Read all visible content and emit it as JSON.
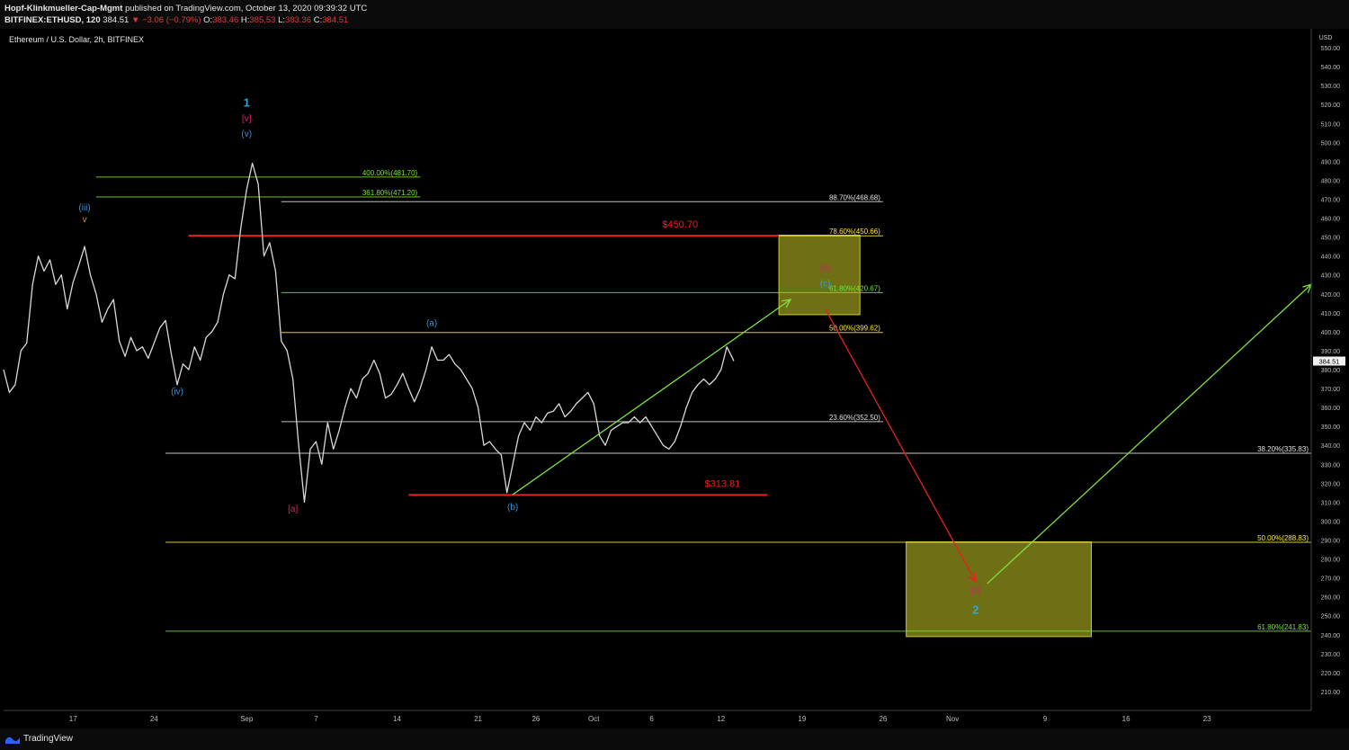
{
  "header": {
    "publisher": "Hopf-Klinkmueller-Cap-Mgmt",
    "published": "published on TradingView.com, October 13, 2020 09:39:32 UTC",
    "symbol": "BITFINEX:ETHUSD, 120",
    "last": "384.51",
    "change": "▼ −3.06 (−0.79%)",
    "o_label": "O:",
    "o": "383.46",
    "h_label": "H:",
    "h": "385.53",
    "l_label": "L:",
    "l": "383.36",
    "c_label": "C:",
    "c": "384.51"
  },
  "footer": {
    "brand": "TradingView",
    "icon": "tradingview-logo-icon"
  },
  "colors": {
    "background": "#000000",
    "price": "#d8d8d8",
    "red": "#e8211c",
    "green": "#7ee23b",
    "yellow": "#ffeb3b",
    "blue": "#3a8fd6",
    "cyan": "#26a9d6",
    "magenta": "#d8206f",
    "orange": "#f08a24",
    "zone": "#9a9a1f"
  },
  "chart_data": {
    "type": "line",
    "title": "Ethereum / U.S. Dollar, 2h, BITFINEX",
    "currency": "USD",
    "ylim": [
      200,
      560
    ],
    "yticks": [
      210,
      220,
      230,
      240,
      250,
      260,
      270,
      280,
      290,
      300,
      310,
      320,
      330,
      340,
      350,
      360,
      370,
      380,
      390,
      400,
      410,
      420,
      430,
      440,
      450,
      460,
      470,
      480,
      490,
      500,
      510,
      520,
      530,
      540,
      550
    ],
    "xlim": [
      "2020-08-11",
      "2020-12-02"
    ],
    "xticks": [
      {
        "x": "2020-08-17",
        "label": "17"
      },
      {
        "x": "2020-08-24",
        "label": "24"
      },
      {
        "x": "2020-09-01",
        "label": "Sep"
      },
      {
        "x": "2020-09-07",
        "label": "7"
      },
      {
        "x": "2020-09-14",
        "label": "14"
      },
      {
        "x": "2020-09-21",
        "label": "21"
      },
      {
        "x": "2020-09-26",
        "label": "26"
      },
      {
        "x": "2020-10-01",
        "label": "Oct"
      },
      {
        "x": "2020-10-06",
        "label": "6"
      },
      {
        "x": "2020-10-12",
        "label": "12"
      },
      {
        "x": "2020-10-19",
        "label": "19"
      },
      {
        "x": "2020-10-26",
        "label": "26"
      },
      {
        "x": "2020-11-01",
        "label": "Nov"
      },
      {
        "x": "2020-11-09",
        "label": "9"
      },
      {
        "x": "2020-11-16",
        "label": "16"
      },
      {
        "x": "2020-11-23",
        "label": "23"
      }
    ],
    "current_price": 384.51,
    "price_series": [
      [
        "2020-08-11",
        380
      ],
      [
        "2020-08-11.5",
        368
      ],
      [
        "2020-08-12",
        372
      ],
      [
        "2020-08-12.5",
        390
      ],
      [
        "2020-08-13",
        394
      ],
      [
        "2020-08-13.5",
        425
      ],
      [
        "2020-08-14",
        440
      ],
      [
        "2020-08-14.5",
        432
      ],
      [
        "2020-08-15",
        438
      ],
      [
        "2020-08-15.5",
        425
      ],
      [
        "2020-08-16",
        430
      ],
      [
        "2020-08-16.5",
        412
      ],
      [
        "2020-08-17",
        426
      ],
      [
        "2020-08-17.5",
        435
      ],
      [
        "2020-08-18",
        445
      ],
      [
        "2020-08-18.5",
        430
      ],
      [
        "2020-08-19",
        420
      ],
      [
        "2020-08-19.5",
        405
      ],
      [
        "2020-08-20",
        412
      ],
      [
        "2020-08-20.5",
        417
      ],
      [
        "2020-08-21",
        395
      ],
      [
        "2020-08-21.5",
        387
      ],
      [
        "2020-08-22",
        397
      ],
      [
        "2020-08-22.5",
        390
      ],
      [
        "2020-08-23",
        392
      ],
      [
        "2020-08-23.5",
        386
      ],
      [
        "2020-08-24",
        394
      ],
      [
        "2020-08-24.5",
        402
      ],
      [
        "2020-08-25",
        406
      ],
      [
        "2020-08-25.5",
        388
      ],
      [
        "2020-08-26",
        372
      ],
      [
        "2020-08-26.5",
        383
      ],
      [
        "2020-08-27",
        380
      ],
      [
        "2020-08-27.5",
        392
      ],
      [
        "2020-08-28",
        385
      ],
      [
        "2020-08-28.5",
        397
      ],
      [
        "2020-08-29",
        400
      ],
      [
        "2020-08-29.5",
        405
      ],
      [
        "2020-08-30",
        420
      ],
      [
        "2020-08-30.5",
        430
      ],
      [
        "2020-08-31",
        428
      ],
      [
        "2020-08-31.5",
        455
      ],
      [
        "2020-09-01",
        475
      ],
      [
        "2020-09-01.5",
        489
      ],
      [
        "2020-09-02",
        478
      ],
      [
        "2020-09-02.5",
        440
      ],
      [
        "2020-09-03",
        447
      ],
      [
        "2020-09-03.5",
        432
      ],
      [
        "2020-09-04",
        395
      ],
      [
        "2020-09-04.5",
        390
      ],
      [
        "2020-09-05",
        375
      ],
      [
        "2020-09-05.5",
        340
      ],
      [
        "2020-09-06",
        310
      ],
      [
        "2020-09-06.5",
        338
      ],
      [
        "2020-09-07",
        342
      ],
      [
        "2020-09-07.5",
        330
      ],
      [
        "2020-09-08",
        352
      ],
      [
        "2020-09-08.5",
        338
      ],
      [
        "2020-09-09",
        348
      ],
      [
        "2020-09-09.5",
        360
      ],
      [
        "2020-09-10",
        370
      ],
      [
        "2020-09-10.5",
        365
      ],
      [
        "2020-09-11",
        375
      ],
      [
        "2020-09-11.5",
        378
      ],
      [
        "2020-09-12",
        385
      ],
      [
        "2020-09-12.5",
        378
      ],
      [
        "2020-09-13",
        365
      ],
      [
        "2020-09-13.5",
        367
      ],
      [
        "2020-09-14",
        372
      ],
      [
        "2020-09-14.5",
        378
      ],
      [
        "2020-09-15",
        370
      ],
      [
        "2020-09-15.5",
        363
      ],
      [
        "2020-09-16",
        370
      ],
      [
        "2020-09-16.5",
        380
      ],
      [
        "2020-09-17",
        392
      ],
      [
        "2020-09-17.5",
        385
      ],
      [
        "2020-09-18",
        385
      ],
      [
        "2020-09-18.5",
        388
      ],
      [
        "2020-09-19",
        383
      ],
      [
        "2020-09-19.5",
        380
      ],
      [
        "2020-09-20",
        375
      ],
      [
        "2020-09-20.5",
        370
      ],
      [
        "2020-09-21",
        360
      ],
      [
        "2020-09-21.5",
        340
      ],
      [
        "2020-09-22",
        342
      ],
      [
        "2020-09-22.5",
        338
      ],
      [
        "2020-09-23",
        335
      ],
      [
        "2020-09-23.5",
        315
      ],
      [
        "2020-09-24",
        330
      ],
      [
        "2020-09-24.5",
        345
      ],
      [
        "2020-09-25",
        352
      ],
      [
        "2020-09-25.5",
        348
      ],
      [
        "2020-09-26",
        355
      ],
      [
        "2020-09-26.5",
        352
      ],
      [
        "2020-09-27",
        357
      ],
      [
        "2020-09-27.5",
        358
      ],
      [
        "2020-09-28",
        362
      ],
      [
        "2020-09-28.5",
        355
      ],
      [
        "2020-09-29",
        358
      ],
      [
        "2020-09-29.5",
        362
      ],
      [
        "2020-09-30",
        365
      ],
      [
        "2020-09-30.5",
        368
      ],
      [
        "2020-10-01",
        362
      ],
      [
        "2020-10-01.5",
        345
      ],
      [
        "2020-10-02",
        340
      ],
      [
        "2020-10-02.5",
        348
      ],
      [
        "2020-10-03",
        350
      ],
      [
        "2020-10-03.5",
        352
      ],
      [
        "2020-10-04",
        352
      ],
      [
        "2020-10-04.5",
        355
      ],
      [
        "2020-10-05",
        352
      ],
      [
        "2020-10-05.5",
        355
      ],
      [
        "2020-10-06",
        350
      ],
      [
        "2020-10-06.5",
        345
      ],
      [
        "2020-10-07",
        340
      ],
      [
        "2020-10-07.5",
        338
      ],
      [
        "2020-10-08",
        342
      ],
      [
        "2020-10-08.5",
        350
      ],
      [
        "2020-10-09",
        360
      ],
      [
        "2020-10-09.5",
        368
      ],
      [
        "2020-10-10",
        372
      ],
      [
        "2020-10-10.5",
        375
      ],
      [
        "2020-10-11",
        372
      ],
      [
        "2020-10-11.5",
        375
      ],
      [
        "2020-10-12",
        380
      ],
      [
        "2020-10-12.5",
        392
      ],
      [
        "2020-10-13",
        386
      ],
      [
        "2020-10-13.1",
        384.51
      ]
    ],
    "horizontal_levels": [
      {
        "label": "400.00%(481.70)",
        "price": 481.7,
        "x1": "2020-08-19",
        "x2": "2020-09-16",
        "color": "green"
      },
      {
        "label": "361.80%(471.20)",
        "price": 471.2,
        "x1": "2020-08-19",
        "x2": "2020-09-16",
        "color": "green"
      },
      {
        "label": "88.70%(468.68)",
        "price": 468.68,
        "x1": "2020-09-04",
        "x2": "2020-10-26",
        "color": "white"
      },
      {
        "label": "78.60%(450.66)",
        "price": 450.66,
        "x1": "2020-10-17",
        "x2": "2020-10-26",
        "color": "yellow"
      },
      {
        "label": "61.80%(420.67)",
        "price": 420.67,
        "x1": "2020-09-04",
        "x2": "2020-10-26",
        "color": "green"
      },
      {
        "label": "50.00%(399.62)",
        "price": 399.62,
        "x1": "2020-09-04",
        "x2": "2020-10-26",
        "color": "yellow"
      },
      {
        "label": "23.60%(352.50)",
        "price": 352.5,
        "x1": "2020-09-04",
        "x2": "2020-10-26",
        "color": "white"
      },
      {
        "label": "38.20%(335.83)",
        "price": 335.83,
        "x1": "2020-08-25",
        "x2": "2020-12-02",
        "color": "white"
      },
      {
        "label": "50.00%(288.83)",
        "price": 288.83,
        "x1": "2020-08-25",
        "x2": "2020-12-02",
        "color": "yellow"
      },
      {
        "label": "61.80%(241.83)",
        "price": 241.83,
        "x1": "2020-08-25",
        "x2": "2020-12-02",
        "color": "green"
      }
    ],
    "key_levels": [
      {
        "label": "$450.70",
        "price": 450.7,
        "x1": "2020-08-27",
        "x2": "2020-10-17",
        "color": "red"
      },
      {
        "label": "$313.81",
        "price": 313.81,
        "x1": "2020-09-15",
        "x2": "2020-10-16",
        "color": "red"
      }
    ],
    "target_zones": [
      {
        "x1": "2020-10-17",
        "x2": "2020-10-24",
        "y1": 409,
        "y2": 451
      },
      {
        "x1": "2020-10-28",
        "x2": "2020-11-13",
        "y1": 239,
        "y2": 289
      }
    ],
    "arrows": [
      {
        "color": "green",
        "from": [
          "2020-09-24",
          314
        ],
        "to": [
          "2020-10-18",
          417
        ]
      },
      {
        "color": "red",
        "from": [
          "2020-10-21",
          412
        ],
        "to": [
          "2020-11-03",
          268
        ]
      },
      {
        "color": "green",
        "from": [
          "2020-11-04",
          267
        ],
        "to": [
          "2020-12-02",
          425
        ]
      }
    ],
    "wave_labels": [
      {
        "text": "1",
        "x": "2020-09-01",
        "price": 519,
        "color": "cyan"
      },
      {
        "text": "[v]",
        "x": "2020-09-01",
        "price": 511,
        "color": "magenta"
      },
      {
        "text": "(v)",
        "x": "2020-09-01",
        "price": 503,
        "color": "blue"
      },
      {
        "text": "(iii)",
        "x": "2020-08-18",
        "price": 464,
        "color": "blue"
      },
      {
        "text": "v",
        "x": "2020-08-18",
        "price": 458,
        "color": "orange"
      },
      {
        "text": "(iv)",
        "x": "2020-08-26",
        "price": 367,
        "color": "blue"
      },
      {
        "text": "[a]",
        "x": "2020-09-05",
        "price": 305,
        "color": "magenta"
      },
      {
        "text": "(a)",
        "x": "2020-09-17",
        "price": 403,
        "color": "blue"
      },
      {
        "text": "(b)",
        "x": "2020-09-24",
        "price": 306,
        "color": "blue"
      },
      {
        "text": "[b]",
        "x": "2020-10-21",
        "price": 432,
        "color": "magenta"
      },
      {
        "text": "(c)",
        "x": "2020-10-21",
        "price": 424,
        "color": "cyan"
      },
      {
        "text": "[c]",
        "x": "2020-11-03",
        "price": 262,
        "color": "magenta"
      },
      {
        "text": "2",
        "x": "2020-11-03",
        "price": 251,
        "color": "cyan"
      }
    ]
  }
}
